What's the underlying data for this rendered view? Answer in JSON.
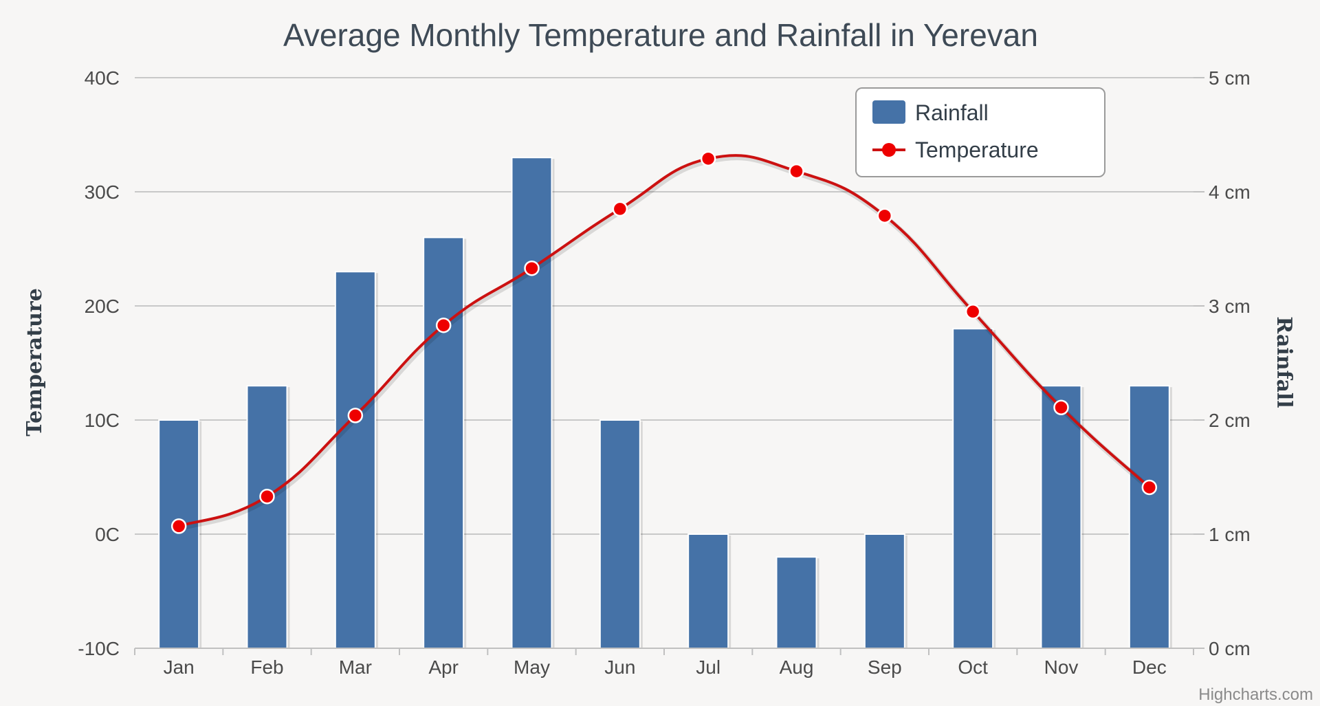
{
  "chart_data": {
    "type": "bar",
    "title": "Average Monthly Temperature and Rainfall in Yerevan",
    "categories": [
      "Jan",
      "Feb",
      "Mar",
      "Apr",
      "May",
      "Jun",
      "Jul",
      "Aug",
      "Sep",
      "Oct",
      "Nov",
      "Dec"
    ],
    "series": [
      {
        "name": "Rainfall",
        "type": "bar",
        "axis": "right",
        "color": "#4572a7",
        "values": [
          2.0,
          2.3,
          3.3,
          3.6,
          4.3,
          2.0,
          1.0,
          0.8,
          1.0,
          2.8,
          2.3,
          2.3
        ]
      },
      {
        "name": "Temperature",
        "type": "spline",
        "axis": "left",
        "color": "#cc1111",
        "marker_color": "#ee0000",
        "values": [
          0.7,
          3.3,
          10.4,
          18.3,
          23.3,
          28.5,
          32.9,
          31.8,
          27.9,
          19.5,
          11.1,
          4.1
        ]
      }
    ],
    "y_left": {
      "label": "Temperature",
      "ylim": [
        -10,
        40
      ],
      "ticks": [
        -10,
        0,
        10,
        20,
        30,
        40
      ],
      "tick_labels": [
        "-10C",
        "0C",
        "10C",
        "20C",
        "30C",
        "40C"
      ]
    },
    "y_right": {
      "label": "Rainfall",
      "ylim": [
        0,
        5
      ],
      "ticks": [
        0,
        1,
        2,
        3,
        4,
        5
      ],
      "tick_labels": [
        "0 cm",
        "1 cm",
        "2 cm",
        "3 cm",
        "4 cm",
        "5 cm"
      ]
    },
    "xlabel": "",
    "grid": true,
    "legend": {
      "position": "top-right",
      "items": [
        "Rainfall",
        "Temperature"
      ]
    },
    "credits": "Highcharts.com"
  }
}
